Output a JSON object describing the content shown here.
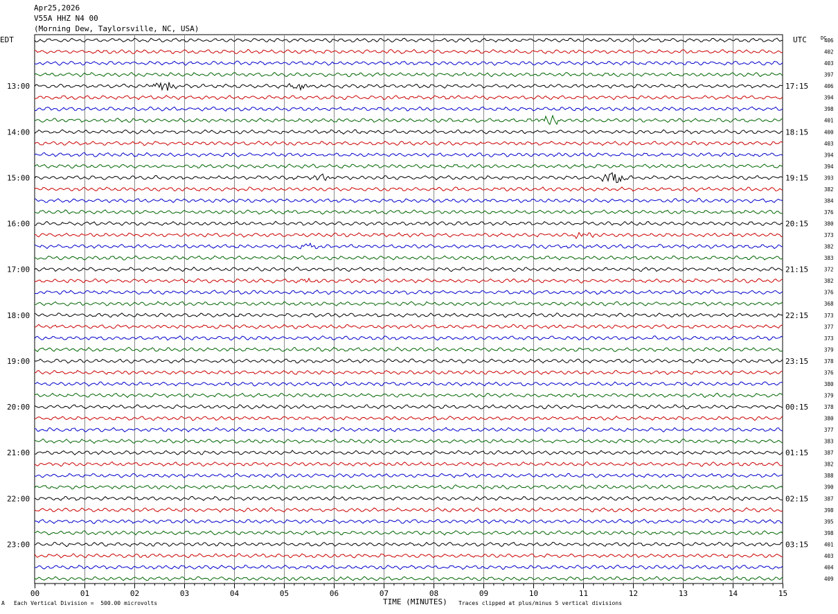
{
  "header": {
    "date": "Apr25,2026",
    "station": "V55A HHZ N4 00",
    "location": "(Morning Dew, Taylorsville, NC, USA)"
  },
  "left_zone": "EDT",
  "right_zone": "UTC",
  "dc_label": "DC",
  "footer": {
    "scale_mark": "A",
    "scale": "Each Vertical Division =  500.00 microvolts",
    "clip": "Traces clipped at plus/minus 5 vertical divisions"
  },
  "colors": [
    "#000000",
    "#cc0000",
    "#0000cc",
    "#006400"
  ],
  "chart_data": {
    "type": "line",
    "xlabel": "TIME (MINUTES)",
    "x_ticks": [
      "00",
      "01",
      "02",
      "03",
      "04",
      "05",
      "06",
      "07",
      "08",
      "09",
      "10",
      "11",
      "12",
      "13",
      "14",
      "15"
    ],
    "xlim": [
      0,
      15
    ],
    "left_hour_labels": [
      "13:00",
      "14:00",
      "15:00",
      "16:00",
      "17:00",
      "18:00",
      "19:00",
      "20:00",
      "21:00",
      "22:00",
      "23:00"
    ],
    "right_hour_labels": [
      "17:15",
      "18:15",
      "19:15",
      "20:15",
      "21:15",
      "22:15",
      "23:15",
      "00:15",
      "01:15",
      "02:15",
      "03:15"
    ],
    "dc_offsets": [
      406,
      402,
      403,
      397,
      406,
      394,
      398,
      401,
      400,
      403,
      394,
      394,
      393,
      382,
      384,
      376,
      380,
      373,
      382,
      383,
      372,
      382,
      376,
      368,
      373,
      377,
      373,
      379,
      378,
      376,
      380,
      379,
      378,
      380,
      377,
      383,
      387,
      382,
      388,
      390,
      387,
      398,
      395,
      398,
      401,
      403,
      404,
      409
    ],
    "events": [
      {
        "trace": 4,
        "minute": 2.6,
        "amp": 5
      },
      {
        "trace": 4,
        "minute": 5.3,
        "amp": 3
      },
      {
        "trace": 7,
        "minute": 10.3,
        "amp": 4
      },
      {
        "trace": 12,
        "minute": 11.6,
        "amp": 6
      },
      {
        "trace": 12,
        "minute": 5.8,
        "amp": 2.5
      },
      {
        "trace": 17,
        "minute": 11.0,
        "amp": 2.5
      },
      {
        "trace": 18,
        "minute": 5.5,
        "amp": 2.5
      },
      {
        "trace": 21,
        "minute": 5.5,
        "amp": 2
      }
    ]
  }
}
